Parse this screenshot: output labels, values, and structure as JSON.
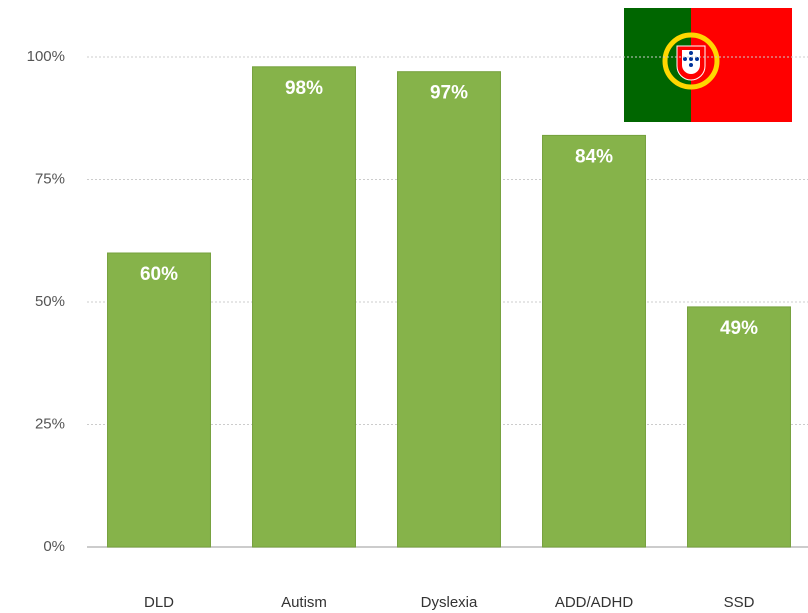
{
  "chart_data": {
    "type": "bar",
    "categories": [
      "DLD",
      "Autism",
      "Dyslexia",
      "ADD/ADHD",
      "SSD"
    ],
    "values": [
      60,
      98,
      97,
      84,
      49
    ],
    "value_labels": [
      "60%",
      "98%",
      "97%",
      "84%",
      "49%"
    ],
    "color": "#86b34a",
    "ylim": [
      0,
      100
    ],
    "yticks": [
      {
        "value": 0,
        "label": "0%"
      },
      {
        "value": 25,
        "label": "25%"
      },
      {
        "value": 50,
        "label": "50%"
      },
      {
        "value": 75,
        "label": "75%"
      },
      {
        "value": 100,
        "label": "100%"
      }
    ],
    "grid": true
  }
}
